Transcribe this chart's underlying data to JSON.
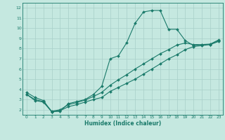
{
  "title": "",
  "xlabel": "Humidex (Indice chaleur)",
  "xlim": [
    -0.5,
    23.5
  ],
  "ylim": [
    1.5,
    12.5
  ],
  "xticks": [
    0,
    1,
    2,
    3,
    4,
    5,
    6,
    7,
    8,
    9,
    10,
    11,
    12,
    13,
    14,
    15,
    16,
    17,
    18,
    19,
    20,
    21,
    22,
    23
  ],
  "yticks": [
    2,
    3,
    4,
    5,
    6,
    7,
    8,
    9,
    10,
    11,
    12
  ],
  "bg_color": "#c5e8e0",
  "line_color": "#1a7a6a",
  "grid_color": "#a8cfc8",
  "spine_color": "#1a7a6a",
  "line1_x": [
    0,
    1,
    2,
    3,
    4,
    5,
    6,
    7,
    8,
    9,
    10,
    11,
    12,
    13,
    14,
    15,
    16,
    17,
    18,
    19,
    20,
    21,
    22,
    23
  ],
  "line1_y": [
    3.7,
    3.2,
    2.9,
    1.8,
    1.85,
    2.6,
    2.8,
    3.0,
    3.5,
    4.3,
    7.0,
    7.3,
    8.6,
    10.5,
    11.6,
    11.75,
    11.75,
    9.9,
    9.9,
    8.8,
    8.3,
    8.4,
    8.4,
    8.8
  ],
  "line2_x": [
    0,
    1,
    2,
    3,
    4,
    5,
    6,
    7,
    8,
    9,
    10,
    11,
    12,
    13,
    14,
    15,
    16,
    17,
    18,
    19,
    20,
    21,
    22,
    23
  ],
  "line2_y": [
    3.5,
    3.0,
    2.8,
    1.85,
    2.0,
    2.5,
    2.7,
    2.95,
    3.3,
    3.7,
    4.4,
    4.95,
    5.45,
    6.0,
    6.5,
    7.0,
    7.5,
    7.9,
    8.35,
    8.55,
    8.4,
    8.4,
    8.45,
    8.85
  ],
  "line3_x": [
    0,
    1,
    2,
    3,
    4,
    5,
    6,
    7,
    8,
    9,
    10,
    11,
    12,
    13,
    14,
    15,
    16,
    17,
    18,
    19,
    20,
    21,
    22,
    23
  ],
  "line3_y": [
    3.5,
    2.9,
    2.75,
    1.8,
    1.9,
    2.3,
    2.5,
    2.75,
    3.0,
    3.2,
    3.8,
    4.2,
    4.6,
    5.0,
    5.5,
    6.0,
    6.5,
    7.0,
    7.4,
    7.9,
    8.2,
    8.3,
    8.4,
    8.7
  ]
}
